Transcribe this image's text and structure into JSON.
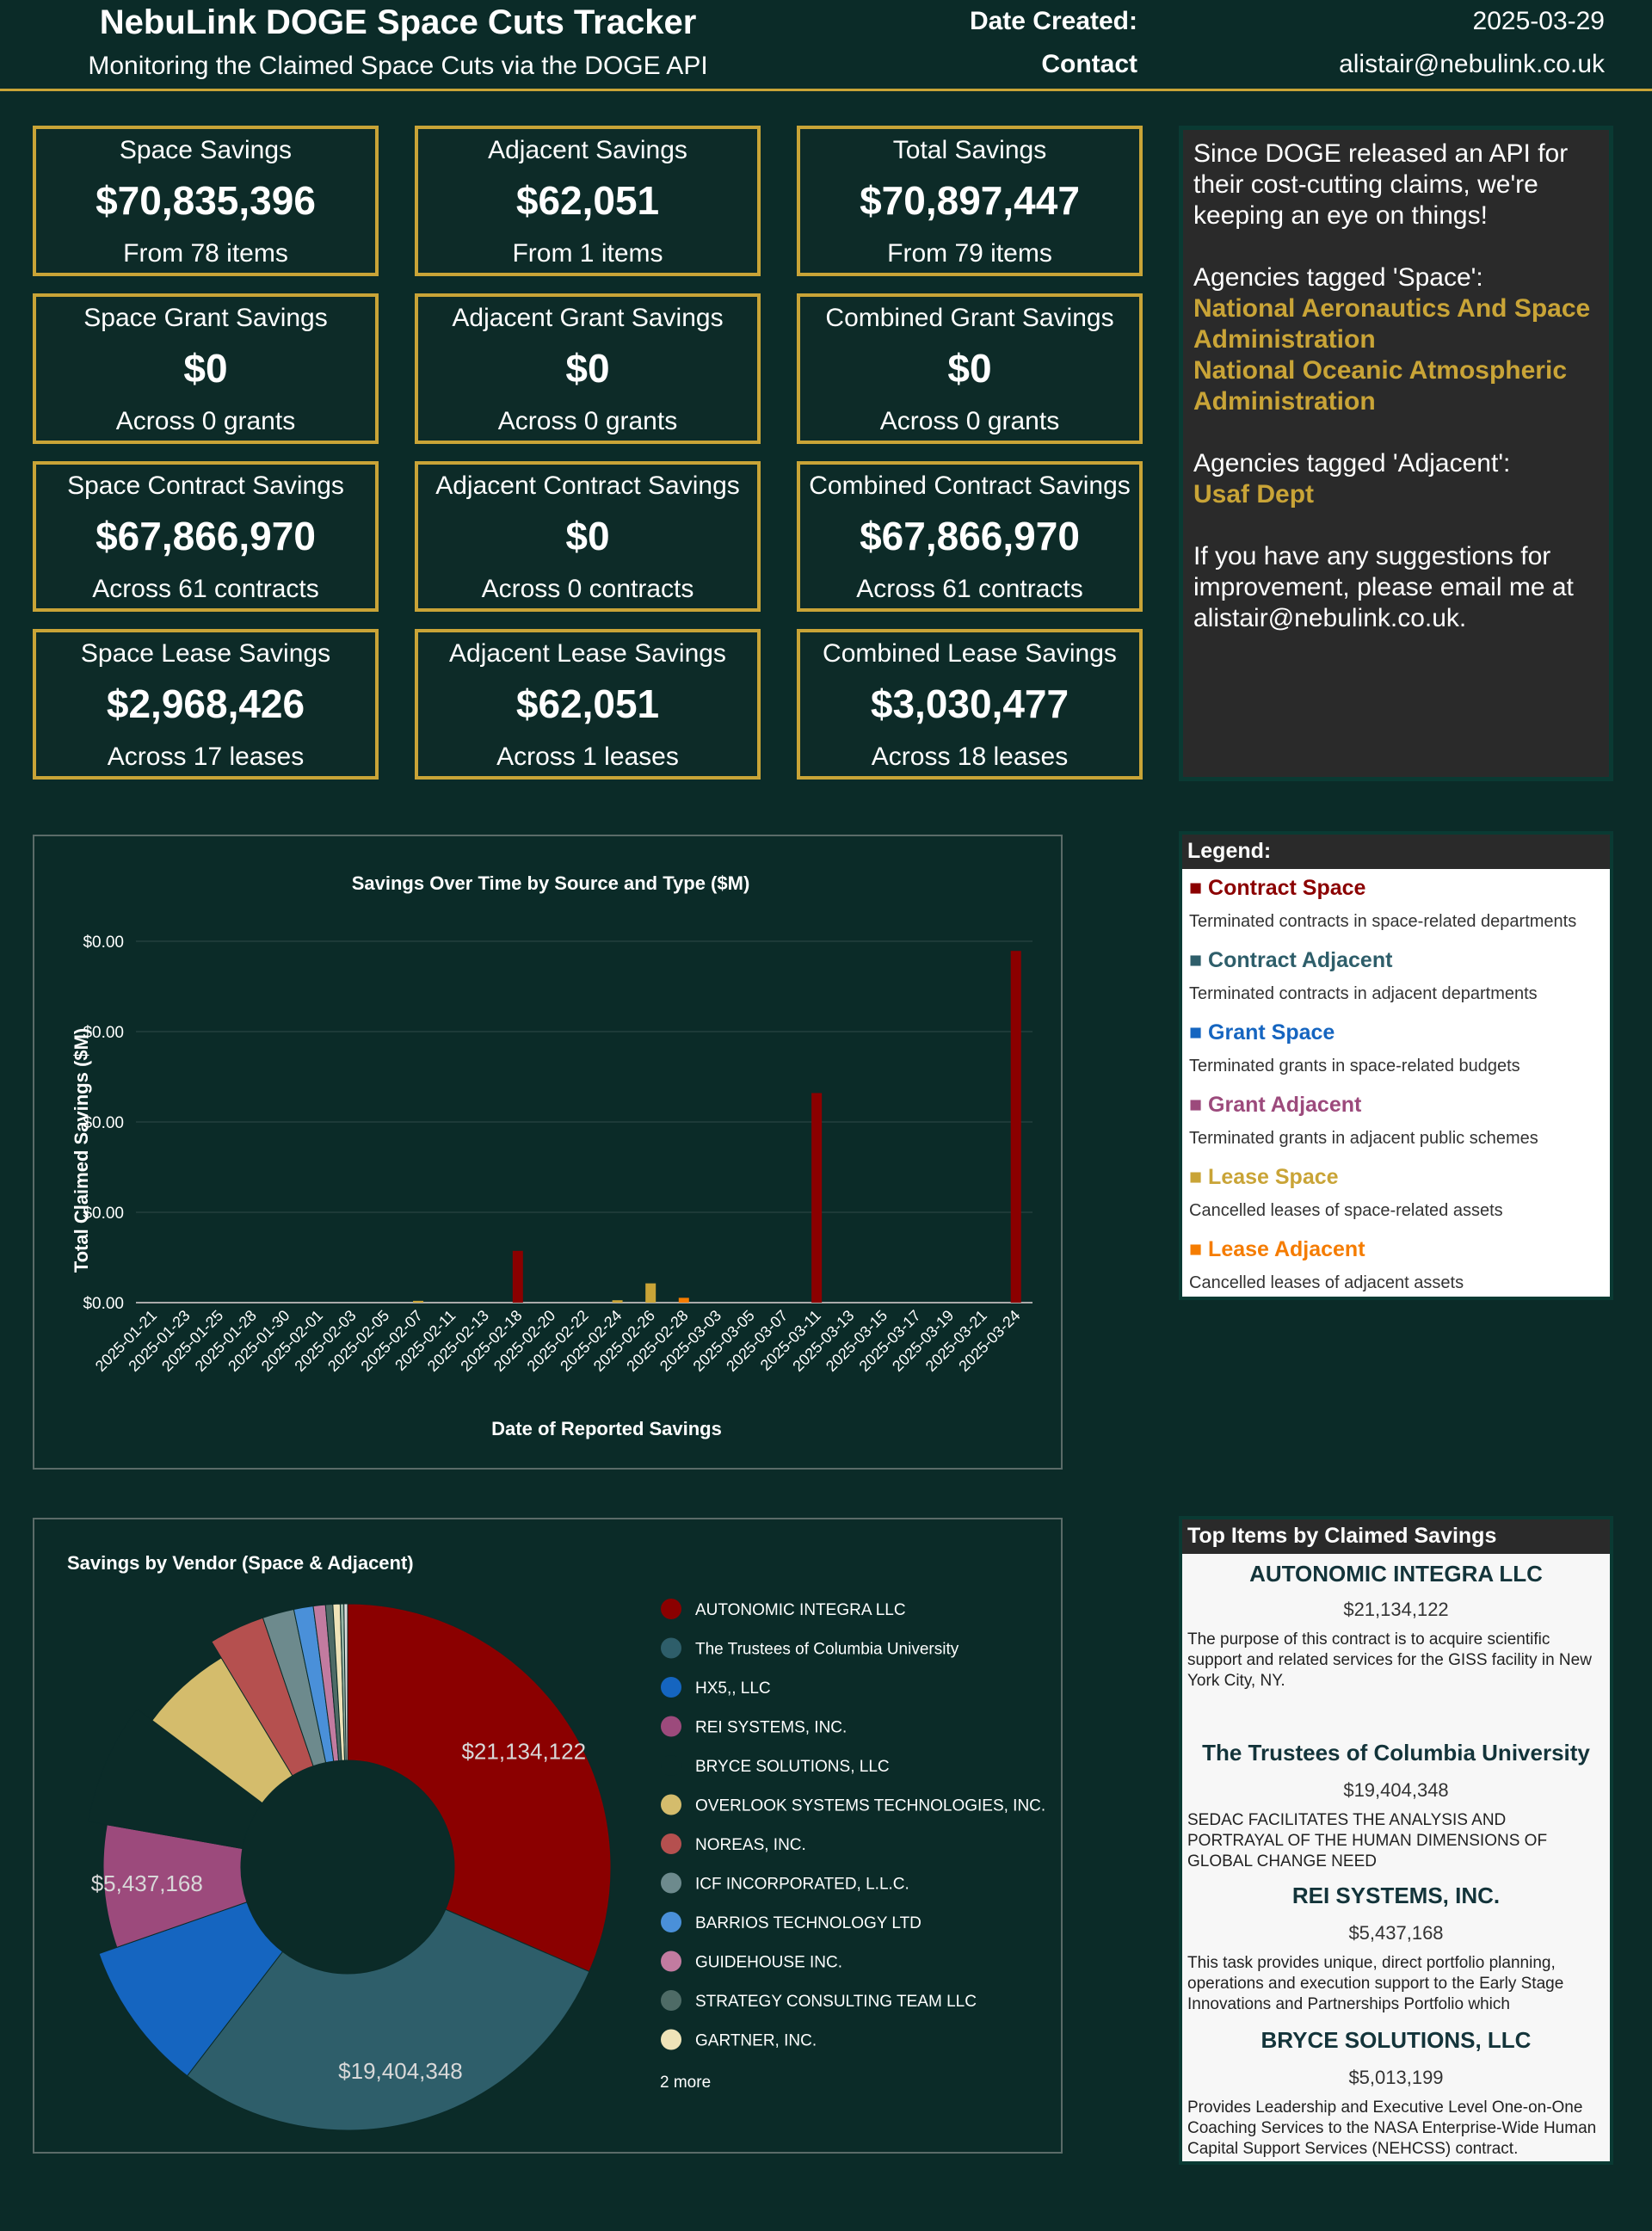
{
  "header": {
    "title": "NebuLink DOGE Space Cuts Tracker",
    "subtitle": "Monitoring the Claimed Space Cuts via the DOGE API",
    "date_label": "Date Created:",
    "date_value": "2025-03-29",
    "contact_label": "Contact",
    "contact_value": "alistair@nebulink.co.uk"
  },
  "cards": [
    {
      "title": "Space Savings",
      "value": "$70,835,396",
      "sub": "From 78 items"
    },
    {
      "title": "Adjacent Savings",
      "value": "$62,051",
      "sub": "From 1 items"
    },
    {
      "title": "Total Savings",
      "value": "$70,897,447",
      "sub": "From 79 items"
    },
    {
      "title": "Space Grant Savings",
      "value": "$0",
      "sub": "Across 0 grants"
    },
    {
      "title": "Adjacent Grant Savings",
      "value": "$0",
      "sub": "Across 0 grants"
    },
    {
      "title": "Combined Grant Savings",
      "value": "$0",
      "sub": "Across 0 grants"
    },
    {
      "title": "Space Contract Savings",
      "value": "$67,866,970",
      "sub": "Across 61 contracts"
    },
    {
      "title": "Adjacent Contract Savings",
      "value": "$0",
      "sub": "Across 0 contracts"
    },
    {
      "title": "Combined Contract Savings",
      "value": "$67,866,970",
      "sub": "Across 61 contracts"
    },
    {
      "title": "Space Lease Savings",
      "value": "$2,968,426",
      "sub": "Across 17 leases"
    },
    {
      "title": "Adjacent Lease Savings",
      "value": "$62,051",
      "sub": "Across 1 leases"
    },
    {
      "title": "Combined Lease Savings",
      "value": "$3,030,477",
      "sub": "Across 18 leases"
    }
  ],
  "info": {
    "intro": "Since DOGE released an API for their cost-cutting claims, we're keeping an eye on things!",
    "space_label": "Agencies tagged 'Space':",
    "space_agencies": [
      "National Aeronautics And Space Administration",
      "National Oceanic Atmospheric Administration"
    ],
    "adjacent_label": "Agencies tagged 'Adjacent':",
    "adjacent_agencies": [
      "Usaf Dept"
    ],
    "suggestion": "If you have any suggestions for improvement, please email me at alistair@nebulink.co.uk."
  },
  "legend": {
    "title": "Legend:",
    "items": [
      {
        "label": "Contract Space",
        "desc": "Terminated contracts in space-related departments",
        "color": "#8b0000"
      },
      {
        "label": "Contract Adjacent",
        "desc": "Terminated contracts in adjacent departments",
        "color": "#2e5e6a"
      },
      {
        "label": "Grant Space",
        "desc": "Terminated grants in space-related budgets",
        "color": "#1565c0"
      },
      {
        "label": "Grant Adjacent",
        "desc": "Terminated grants in adjacent public schemes",
        "color": "#9c4a7c"
      },
      {
        "label": "Lease Space",
        "desc": "Cancelled leases of space-related assets",
        "color": "#c9a437"
      },
      {
        "label": "Lease Adjacent",
        "desc": "Cancelled leases of adjacent assets",
        "color": "#f57c00"
      }
    ]
  },
  "chart_data": [
    {
      "type": "bar",
      "title": "Savings Over Time by Source and Type ($M)",
      "xlabel": "Date of Reported Savings",
      "ylabel": "Total Claimed Savings ($M)",
      "y_tick_labels": [
        "$0.00",
        "$0.00",
        "$0.00",
        "$0.00",
        "$0.00"
      ],
      "grid": true,
      "categories": [
        "2025-01-21",
        "2025-01-23",
        "2025-01-25",
        "2025-01-28",
        "2025-01-30",
        "2025-02-01",
        "2025-02-03",
        "2025-02-05",
        "2025-02-07",
        "2025-02-11",
        "2025-02-13",
        "2025-02-18",
        "2025-02-20",
        "2025-02-22",
        "2025-02-24",
        "2025-02-26",
        "2025-02-28",
        "2025-03-03",
        "2025-03-05",
        "2025-03-07",
        "2025-03-11",
        "2025-03-13",
        "2025-03-15",
        "2025-03-17",
        "2025-03-19",
        "2025-03-21",
        "2025-03-24"
      ],
      "series": [
        {
          "name": "Contract Space",
          "color": "#8b0000",
          "points": [
            {
              "x": "2025-02-18",
              "y": 4.3
            },
            {
              "x": "2025-03-11",
              "y": 17.4
            },
            {
              "x": "2025-03-24",
              "y": 29.2
            }
          ]
        },
        {
          "name": "Lease Space",
          "color": "#c9a437",
          "points": [
            {
              "x": "2025-02-07",
              "y": 0.15
            },
            {
              "x": "2025-02-24",
              "y": 0.2
            },
            {
              "x": "2025-02-26",
              "y": 1.6
            }
          ]
        },
        {
          "name": "Lease Adjacent",
          "color": "#f57c00",
          "points": [
            {
              "x": "2025-02-28",
              "y": 0.4
            }
          ]
        }
      ],
      "ylim": [
        0,
        30
      ]
    },
    {
      "type": "pie",
      "title": "Savings by Vendor (Space & Adjacent)",
      "legend_position": "right",
      "more_label": "2 more",
      "slices": [
        {
          "label": "AUTONOMIC INTEGRA LLC",
          "value": 21134122,
          "value_label": "$21,134,122",
          "color": "#8b0000"
        },
        {
          "label": "The Trustees of Columbia University",
          "value": 19404348,
          "value_label": "$19,404,348",
          "color": "#2e5e6a"
        },
        {
          "label": "HX5,, LLC",
          "value": 6200000,
          "color": "#1565c0"
        },
        {
          "label": "REI SYSTEMS, INC.",
          "value": 5437168,
          "value_label": "$5,437,168",
          "color": "#9c4a7c"
        },
        {
          "label": "BRYCE SOLUTIONS, LLC",
          "value": 5013199,
          "color": "#0b2b28"
        },
        {
          "label": "OVERLOOK SYSTEMS TECHNOLOGIES, INC.",
          "value": 4100000,
          "color": "#d4bc6c"
        },
        {
          "label": "NOREAS, INC.",
          "value": 2300000,
          "color": "#b5504f"
        },
        {
          "label": "ICF INCORPORATED, L.L.C.",
          "value": 1300000,
          "color": "#6d8a8d"
        },
        {
          "label": "BARRIOS TECHNOLOGY LTD",
          "value": 800000,
          "color": "#4a90d9"
        },
        {
          "label": "GUIDEHOUSE INC.",
          "value": 500000,
          "color": "#c27ba0"
        },
        {
          "label": "STRATEGY CONSULTING TEAM LLC",
          "value": 300000,
          "color": "#4e6b66"
        },
        {
          "label": "GARTNER, INC.",
          "value": 300000,
          "color": "#efe3b8"
        },
        {
          "label": "",
          "value": 150000,
          "color": "#9bb7a8"
        },
        {
          "label": "",
          "value": 150000,
          "color": "#dddddd"
        }
      ]
    }
  ],
  "top_items": {
    "title": "Top Items by Claimed Savings",
    "items": [
      {
        "name": "AUTONOMIC INTEGRA LLC",
        "value": "$21,134,122",
        "desc": "The purpose of this contract is to acquire scientific support and related services for the GISS facility in New York City, NY."
      },
      {
        "name": "The Trustees of Columbia University",
        "value": "$19,404,348",
        "desc": "SEDAC FACILITATES THE ANALYSIS AND PORTRAYAL OF THE HUMAN DIMENSIONS OF GLOBAL CHANGE NEED"
      },
      {
        "name": "REI SYSTEMS, INC.",
        "value": "$5,437,168",
        "desc": "This task provides unique, direct portfolio planning, operations and execution support to the Early Stage Innovations and Partnerships Portfolio which"
      },
      {
        "name": "BRYCE SOLUTIONS, LLC",
        "value": "$5,013,199",
        "desc": "Provides Leadership and Executive Level One-on-One Coaching Services to the NASA Enterprise-Wide Human Capital Support Services (NEHCSS) contract."
      }
    ]
  }
}
